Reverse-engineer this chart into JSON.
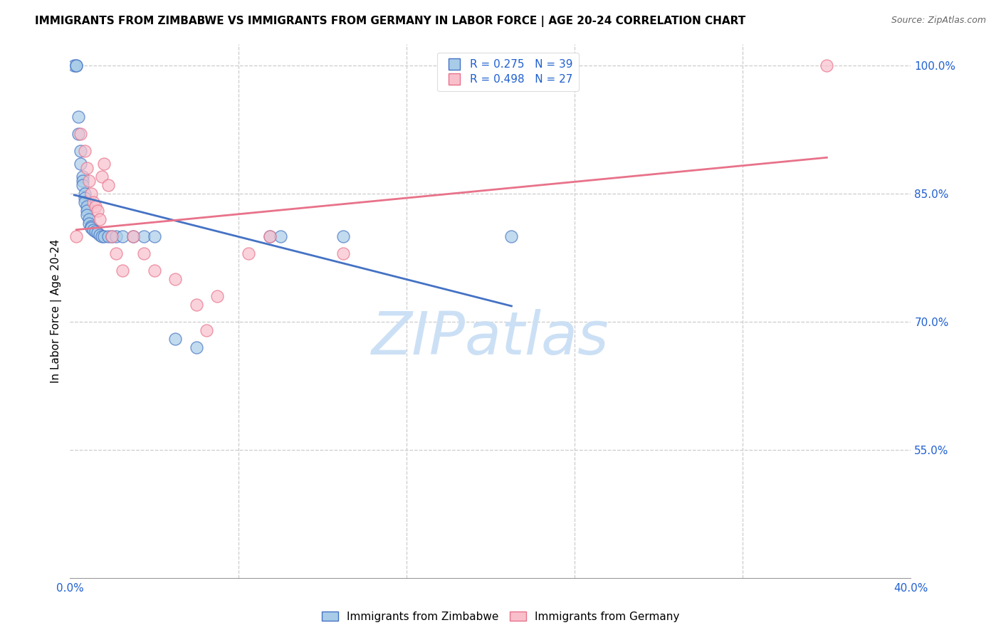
{
  "title": "IMMIGRANTS FROM ZIMBABWE VS IMMIGRANTS FROM GERMANY IN LABOR FORCE | AGE 20-24 CORRELATION CHART",
  "source": "Source: ZipAtlas.com",
  "ylabel": "In Labor Force | Age 20-24",
  "xlabel": "",
  "watermark_zip": "ZIP",
  "watermark_atlas": "atlas",
  "legend_entries": [
    "Immigrants from Zimbabwe",
    "Immigrants from Germany"
  ],
  "r_zimbabwe": 0.275,
  "n_zimbabwe": 39,
  "r_germany": 0.498,
  "n_germany": 27,
  "color_zimbabwe": "#a8cce8",
  "color_germany": "#f9c0cc",
  "line_color_zimbabwe": "#4472c4",
  "line_color_germany": "#e8728a",
  "xlim": [
    0.0,
    0.4
  ],
  "ylim": [
    0.4,
    1.025
  ],
  "xticks": [
    0.0,
    0.08,
    0.16,
    0.24,
    0.32,
    0.4
  ],
  "xtick_labels": [
    "0.0%",
    "",
    "",
    "",
    "",
    "40.0%"
  ],
  "ytick_right_vals": [
    1.0,
    0.85,
    0.7,
    0.55
  ],
  "ytick_right_labels": [
    "100.0%",
    "85.0%",
    "70.0%",
    "55.0%"
  ],
  "zimbabwe_x": [
    0.002,
    0.003,
    0.003,
    0.004,
    0.004,
    0.005,
    0.005,
    0.006,
    0.006,
    0.006,
    0.007,
    0.007,
    0.007,
    0.008,
    0.008,
    0.008,
    0.009,
    0.009,
    0.01,
    0.01,
    0.011,
    0.012,
    0.013,
    0.014,
    0.015,
    0.016,
    0.018,
    0.02,
    0.022,
    0.025,
    0.03,
    0.035,
    0.04,
    0.05,
    0.06,
    0.095,
    0.1,
    0.13,
    0.21
  ],
  "zimbabwe_y": [
    1.0,
    1.0,
    1.0,
    0.94,
    0.92,
    0.9,
    0.885,
    0.87,
    0.865,
    0.86,
    0.85,
    0.845,
    0.84,
    0.835,
    0.83,
    0.825,
    0.82,
    0.815,
    0.812,
    0.81,
    0.808,
    0.806,
    0.804,
    0.802,
    0.8,
    0.8,
    0.8,
    0.8,
    0.8,
    0.8,
    0.8,
    0.8,
    0.8,
    0.68,
    0.67,
    0.8,
    0.8,
    0.8,
    0.8
  ],
  "germany_x": [
    0.003,
    0.005,
    0.007,
    0.008,
    0.009,
    0.01,
    0.011,
    0.012,
    0.013,
    0.014,
    0.015,
    0.016,
    0.018,
    0.02,
    0.022,
    0.025,
    0.03,
    0.035,
    0.04,
    0.05,
    0.06,
    0.065,
    0.07,
    0.085,
    0.095,
    0.13,
    0.36
  ],
  "germany_y": [
    0.8,
    0.92,
    0.9,
    0.88,
    0.865,
    0.85,
    0.84,
    0.835,
    0.83,
    0.82,
    0.87,
    0.885,
    0.86,
    0.8,
    0.78,
    0.76,
    0.8,
    0.78,
    0.76,
    0.75,
    0.72,
    0.69,
    0.73,
    0.78,
    0.8,
    0.78,
    1.0
  ],
  "background_color": "#ffffff",
  "grid_color": "#cccccc",
  "tick_color": "#2060d0",
  "title_color": "#000000",
  "source_color": "#666666",
  "ylabel_color": "#000000",
  "watermark_color": "#cce0f5"
}
